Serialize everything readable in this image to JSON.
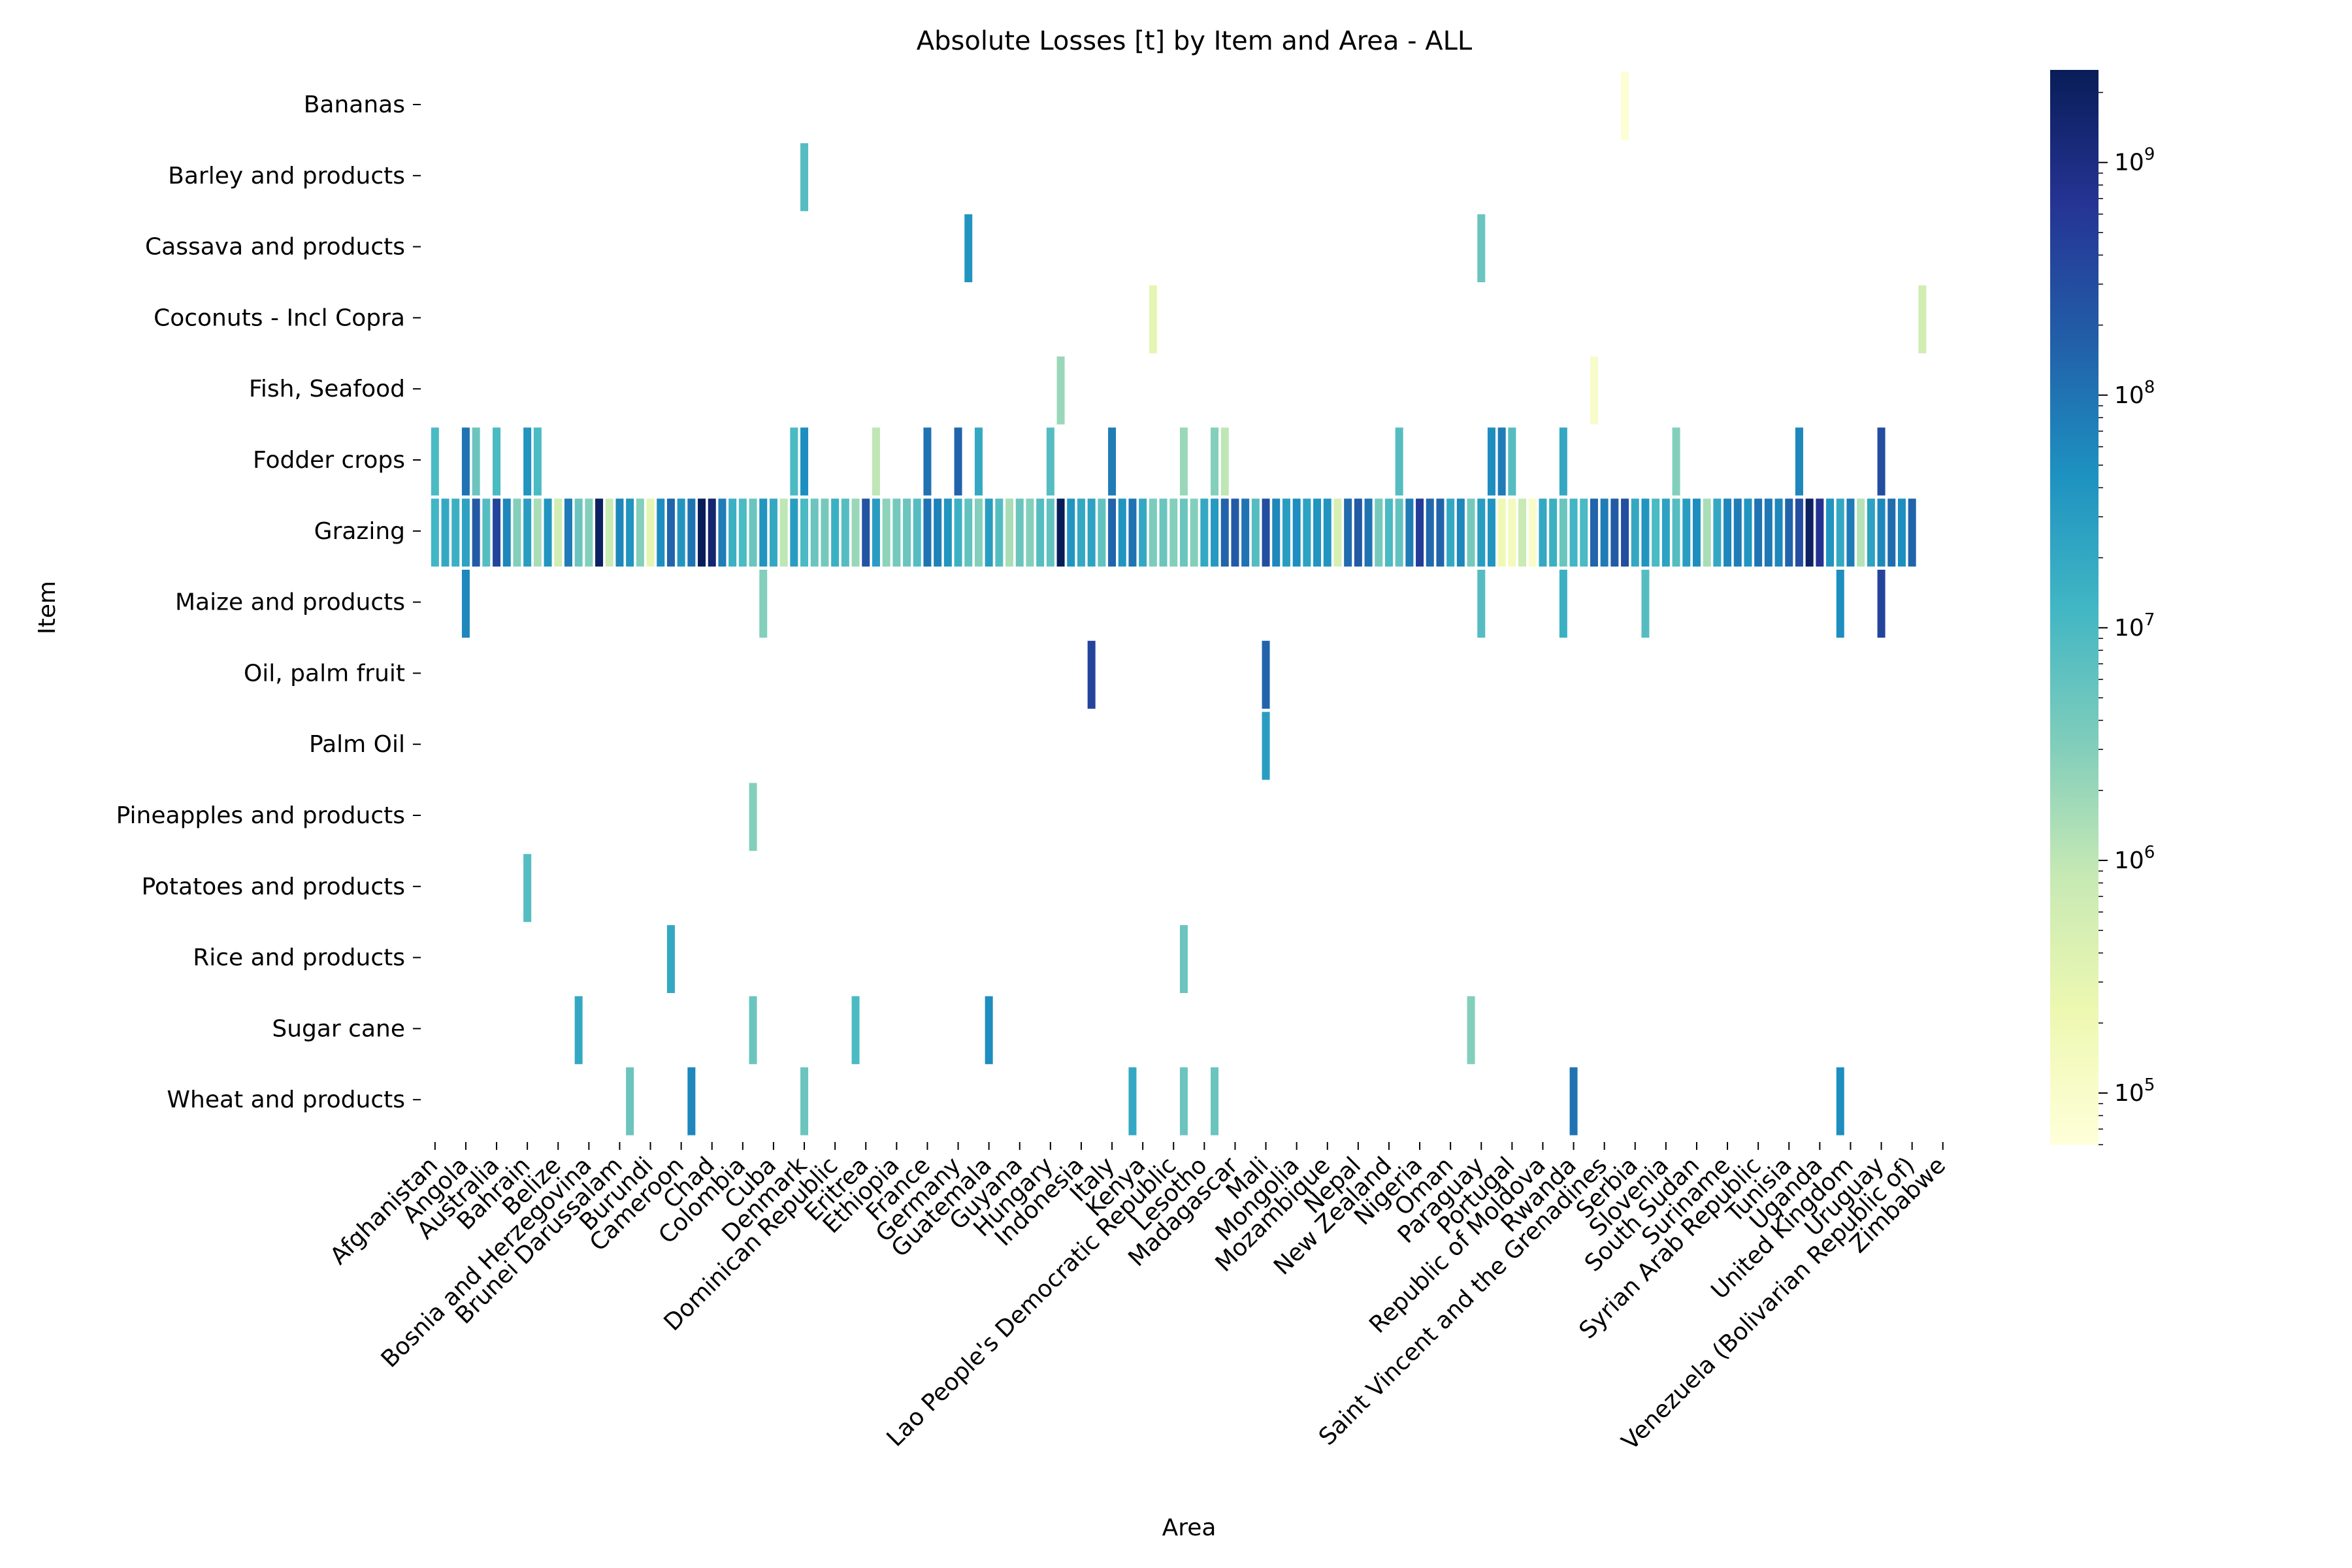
{
  "chart_data": {
    "type": "heatmap",
    "title": "Absolute Losses [t] by Item and Area - ALL",
    "xlabel": "Area",
    "ylabel": "Item",
    "scale": "log",
    "colormap": "YlGnBu",
    "colorbar": {
      "range": [
        60000,
        2500000000
      ],
      "tick_values": [
        100000,
        1000000,
        10000000,
        100000000,
        1000000000
      ],
      "tick_labels": [
        "10^5",
        "10^6",
        "10^7",
        "10^8",
        "10^9"
      ]
    },
    "y_categories": [
      "Bananas",
      "Barley and products",
      "Cassava and products",
      "Coconuts - Incl Copra",
      "Fish, Seafood",
      "Fodder crops",
      "Grazing",
      "Maize and products",
      "Oil, palm fruit",
      "Palm Oil",
      "Pineapples and products",
      "Potatoes and products",
      "Rice and products",
      "Sugar cane",
      "Wheat and products"
    ],
    "x_tick_labels": [
      "Afghanistan",
      "Angola",
      "Australia",
      "Bahrain",
      "Belize",
      "Bosnia and Herzegovina",
      "Brunei Darussalam",
      "Burundi",
      "Cameroon",
      "Chad",
      "Colombia",
      "Cuba",
      "Denmark",
      "Dominican Republic",
      "Eritrea",
      "Ethiopia",
      "France",
      "Germany",
      "Guatemala",
      "Guyana",
      "Hungary",
      "Indonesia",
      "Italy",
      "Kenya",
      "Lao People's Democratic Republic",
      "Lesotho",
      "Madagascar",
      "Mali",
      "Mongolia",
      "Mozambique",
      "Nepal",
      "New Zealand",
      "Nigeria",
      "Oman",
      "Paraguay",
      "Portugal",
      "Republic of Moldova",
      "Rwanda",
      "Saint Vincent and the Grenadines",
      "Serbia",
      "Slovenia",
      "South Sudan",
      "Suriname",
      "Syrian Arab Republic",
      "Tunisia",
      "Uganda",
      "United Kingdom",
      "Uruguay",
      "Venezuela (Bolivarian Republic of)",
      "Zimbabwe"
    ],
    "columns_total": 150,
    "x_tick_every": 3,
    "grazing_values": [
      12000000,
      20000000,
      15000000,
      25000000,
      200000000,
      8000000,
      400000000,
      60000000,
      3000000,
      30000000,
      1500000,
      40000000,
      600000,
      80000000,
      5000000,
      3000000,
      2000000000,
      800000,
      60000000,
      40000000,
      3000000,
      300000,
      50000000,
      150000000,
      40000000,
      100000000,
      2500000000,
      1500000000,
      80000000,
      15000000,
      10000000,
      5000000,
      40000000,
      20000000,
      1000000,
      30000000,
      10000000,
      5000000,
      4000000,
      15000000,
      8000000,
      2000000,
      250000000,
      30000000,
      2500000,
      4000000,
      5000000,
      8000000,
      100000000,
      70000000,
      40000000,
      15000000,
      6000000,
      3000000,
      30000000,
      8000000,
      1500000,
      5000000,
      3000000,
      8000000,
      6000000,
      2500000000,
      40000000,
      20000000,
      25000000,
      6000000,
      150000000,
      40000000,
      100000000,
      20000000,
      3500000,
      5000000,
      3000000,
      5000000,
      3000000,
      20000000,
      35000000,
      150000000,
      200000000,
      100000000,
      8000000,
      300000000,
      60000000,
      30000000,
      50000000,
      25000000,
      40000000,
      40000000,
      500000,
      120000000,
      200000000,
      100000000,
      4000000,
      10000000,
      6000000,
      80000000,
      500000000,
      130000000,
      150000000,
      20000000,
      60000000,
      4000000,
      30000000,
      40000000,
      200000,
      150000,
      800000,
      100000,
      20000000,
      15000000,
      5000000,
      12000000,
      10000000,
      150000000,
      80000000,
      200000000,
      300000000,
      20000000,
      40000000,
      10000000,
      25000000,
      8000000,
      30000000,
      50000000,
      1500000,
      20000000,
      60000000,
      80000000,
      40000000,
      100000000,
      90000000,
      60000000,
      150000000,
      300000000,
      2000000000,
      700000000,
      40000000,
      20000000,
      80000000,
      1200000,
      25000000,
      60000000,
      120000000,
      50000000,
      150000000
    ],
    "sparse_cells": [
      {
        "item": "Bananas",
        "col": 116,
        "value": 70000
      },
      {
        "item": "Barley and products",
        "col": 36,
        "value": 8000000
      },
      {
        "item": "Cassava and products",
        "col": 52,
        "value": 40000000
      },
      {
        "item": "Cassava and products",
        "col": 102,
        "value": 5000000
      },
      {
        "item": "Coconuts - Incl Copra",
        "col": 70,
        "value": 300000
      },
      {
        "item": "Coconuts - Incl Copra",
        "col": 145,
        "value": 600000
      },
      {
        "item": "Fish, Seafood",
        "col": 61,
        "value": 2000000
      },
      {
        "item": "Fish, Seafood",
        "col": 113,
        "value": 100000
      },
      {
        "item": "Fodder crops",
        "col": 0,
        "value": 10000000
      },
      {
        "item": "Fodder crops",
        "col": 3,
        "value": 100000000
      },
      {
        "item": "Fodder crops",
        "col": 4,
        "value": 5000000
      },
      {
        "item": "Fodder crops",
        "col": 6,
        "value": 10000000
      },
      {
        "item": "Fodder crops",
        "col": 9,
        "value": 40000000
      },
      {
        "item": "Fodder crops",
        "col": 10,
        "value": 10000000
      },
      {
        "item": "Fodder crops",
        "col": 35,
        "value": 10000000
      },
      {
        "item": "Fodder crops",
        "col": 36,
        "value": 50000000
      },
      {
        "item": "Fodder crops",
        "col": 43,
        "value": 1000000
      },
      {
        "item": "Fodder crops",
        "col": 48,
        "value": 100000000
      },
      {
        "item": "Fodder crops",
        "col": 51,
        "value": 150000000
      },
      {
        "item": "Fodder crops",
        "col": 53,
        "value": 20000000
      },
      {
        "item": "Fodder crops",
        "col": 60,
        "value": 8000000
      },
      {
        "item": "Fodder crops",
        "col": 66,
        "value": 80000000
      },
      {
        "item": "Fodder crops",
        "col": 73,
        "value": 2000000
      },
      {
        "item": "Fodder crops",
        "col": 76,
        "value": 3000000
      },
      {
        "item": "Fodder crops",
        "col": 77,
        "value": 1000000
      },
      {
        "item": "Fodder crops",
        "col": 94,
        "value": 8000000
      },
      {
        "item": "Fodder crops",
        "col": 103,
        "value": 50000000
      },
      {
        "item": "Fodder crops",
        "col": 104,
        "value": 80000000
      },
      {
        "item": "Fodder crops",
        "col": 105,
        "value": 8000000
      },
      {
        "item": "Fodder crops",
        "col": 110,
        "value": 20000000
      },
      {
        "item": "Fodder crops",
        "col": 121,
        "value": 3000000
      },
      {
        "item": "Fodder crops",
        "col": 133,
        "value": 60000000
      },
      {
        "item": "Fodder crops",
        "col": 141,
        "value": 300000000
      },
      {
        "item": "Maize and products",
        "col": 3,
        "value": 60000000
      },
      {
        "item": "Maize and products",
        "col": 32,
        "value": 3000000
      },
      {
        "item": "Maize and products",
        "col": 102,
        "value": 8000000
      },
      {
        "item": "Maize and products",
        "col": 110,
        "value": 15000000
      },
      {
        "item": "Maize and products",
        "col": 118,
        "value": 8000000
      },
      {
        "item": "Maize and products",
        "col": 137,
        "value": 50000000
      },
      {
        "item": "Maize and products",
        "col": 141,
        "value": 400000000
      },
      {
        "item": "Oil, palm fruit",
        "col": 64,
        "value": 400000000
      },
      {
        "item": "Oil, palm fruit",
        "col": 81,
        "value": 150000000
      },
      {
        "item": "Palm Oil",
        "col": 81,
        "value": 30000000
      },
      {
        "item": "Pineapples and products",
        "col": 31,
        "value": 3000000
      },
      {
        "item": "Potatoes and products",
        "col": 9,
        "value": 8000000
      },
      {
        "item": "Rice and products",
        "col": 23,
        "value": 20000000
      },
      {
        "item": "Rice and products",
        "col": 73,
        "value": 5000000
      },
      {
        "item": "Sugar cane",
        "col": 14,
        "value": 20000000
      },
      {
        "item": "Sugar cane",
        "col": 31,
        "value": 5000000
      },
      {
        "item": "Sugar cane",
        "col": 41,
        "value": 10000000
      },
      {
        "item": "Sugar cane",
        "col": 54,
        "value": 50000000
      },
      {
        "item": "Sugar cane",
        "col": 101,
        "value": 3000000
      },
      {
        "item": "Wheat and products",
        "col": 19,
        "value": 5000000
      },
      {
        "item": "Wheat and products",
        "col": 25,
        "value": 60000000
      },
      {
        "item": "Wheat and products",
        "col": 36,
        "value": 5000000
      },
      {
        "item": "Wheat and products",
        "col": 68,
        "value": 20000000
      },
      {
        "item": "Wheat and products",
        "col": 73,
        "value": 5000000
      },
      {
        "item": "Wheat and products",
        "col": 76,
        "value": 5000000
      },
      {
        "item": "Wheat and products",
        "col": 111,
        "value": 100000000
      },
      {
        "item": "Wheat and products",
        "col": 137,
        "value": 50000000
      }
    ]
  }
}
